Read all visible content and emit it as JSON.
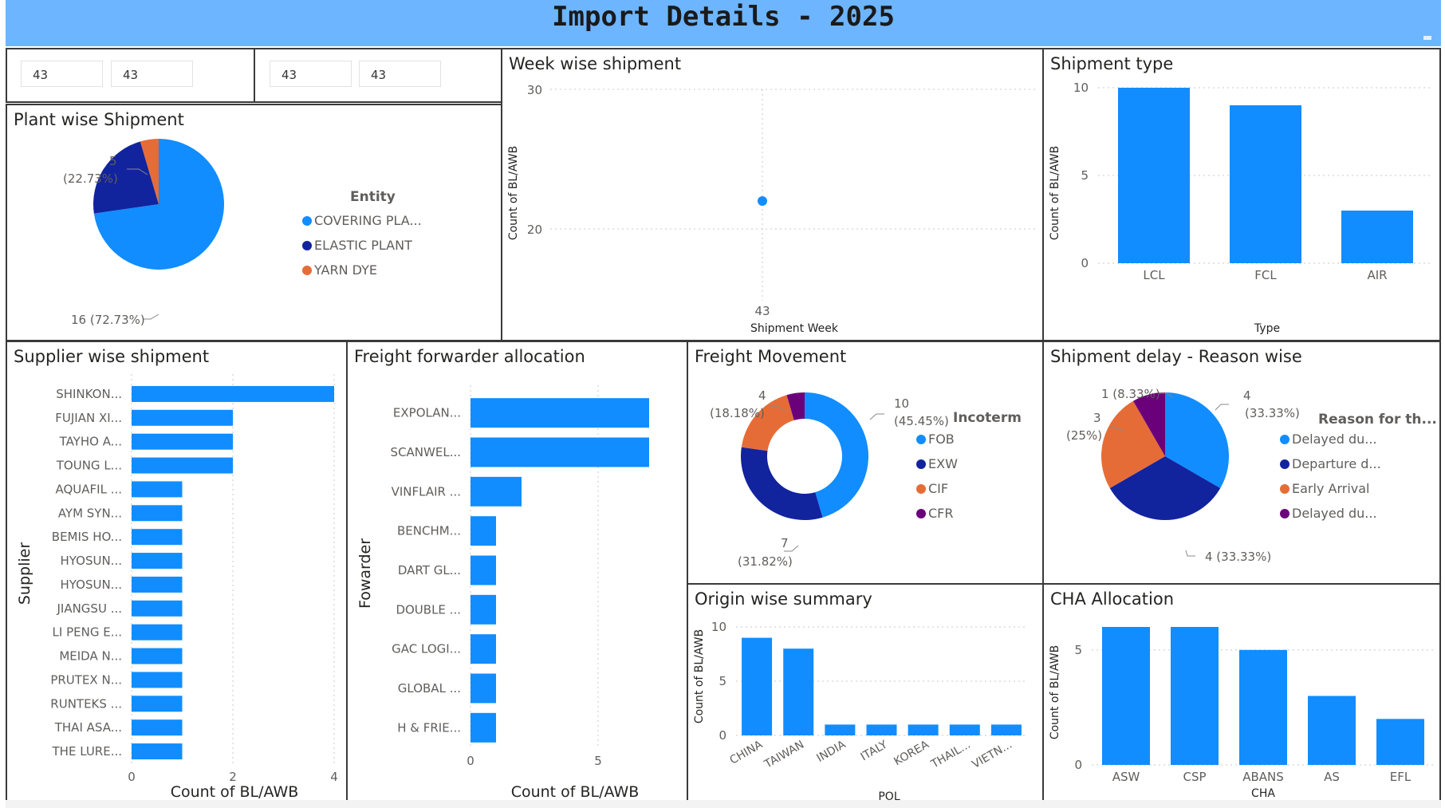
{
  "page": {
    "title": "Import Details - 2025"
  },
  "slicers": [
    "43",
    "43",
    "43",
    "43"
  ],
  "colors": {
    "blue": "#118dff",
    "navy": "#12239e",
    "orange": "#e66c37",
    "purple": "#6b007b",
    "header": "#6db5ff"
  },
  "chart_data": [
    {
      "id": "plant",
      "title": "Plant wise Shipment",
      "type": "pie",
      "legend_title": "Entity",
      "legend_position": "right",
      "categories": [
        "COVERING PLA...",
        "ELASTIC PLANT",
        "YARN DYE"
      ],
      "values": [
        16,
        5,
        1
      ],
      "labels": [
        "16 (72.73%)",
        "5 (22.73%)"
      ]
    },
    {
      "id": "week",
      "title": "Week wise shipment",
      "type": "scatter",
      "xlabel": "Shipment Week",
      "ylabel": "Count of BL/AWB",
      "x": [
        "43"
      ],
      "y": [
        22
      ],
      "yticks": [
        "20",
        "30"
      ],
      "ylim": [
        16,
        30
      ],
      "grid": true
    },
    {
      "id": "shiptype",
      "title": "Shipment type",
      "type": "bar",
      "xlabel": "Type",
      "ylabel": "Count of BL/AWB",
      "categories": [
        "LCL",
        "FCL",
        "AIR"
      ],
      "values": [
        10,
        9,
        3
      ],
      "yticks": [
        "0",
        "5",
        "10"
      ],
      "ylim": [
        0,
        10
      ],
      "grid": true
    },
    {
      "id": "supplier",
      "title": "Supplier wise shipment",
      "type": "bar",
      "orientation": "horizontal",
      "xlabel": "Count of BL/AWB",
      "ylabel": "Supplier",
      "categories": [
        "SHINKON...",
        "FUJIAN XI...",
        "TAYHO A...",
        "TOUNG L...",
        "AQUAFIL ...",
        "AYM SYN...",
        "BEMIS HO...",
        "HYOSUN...",
        "HYOSUN...",
        "JIANGSU ...",
        "LI PENG E...",
        "MEIDA N...",
        "PRUTEX N...",
        "RUNTEKS ...",
        "THAI ASA...",
        "THE LURE..."
      ],
      "values": [
        4,
        2,
        2,
        2,
        1,
        1,
        1,
        1,
        1,
        1,
        1,
        1,
        1,
        1,
        1,
        1
      ],
      "xticks": [
        "0",
        "2",
        "4"
      ],
      "xlim": [
        0,
        4
      ],
      "grid": true
    },
    {
      "id": "forwarder",
      "title": "Freight forwarder allocation",
      "type": "bar",
      "orientation": "horizontal",
      "xlabel": "Count of BL/AWB",
      "ylabel": "Fowarder",
      "categories": [
        "EXPOLAN...",
        "SCANWEL...",
        "VINFLAIR ...",
        "BENCHM...",
        "DART GL...",
        "DOUBLE ...",
        "GAC LOGI...",
        "GLOBAL ...",
        "H & FRIE..."
      ],
      "values": [
        7,
        7,
        2,
        1,
        1,
        1,
        1,
        1,
        1
      ],
      "xticks": [
        "0",
        "5"
      ],
      "xlim": [
        0,
        7
      ],
      "grid": true
    },
    {
      "id": "freight",
      "title": "Freight Movement",
      "type": "pie",
      "donut": true,
      "legend_title": "Incoterm",
      "legend_position": "right",
      "categories": [
        "FOB",
        "EXW",
        "CIF",
        "CFR"
      ],
      "values": [
        10,
        7,
        4,
        1
      ],
      "labels": [
        "10 (45.45%)",
        "7 (31.82%)",
        "4 (18.18%)"
      ]
    },
    {
      "id": "delay",
      "title": "Shipment delay - Reason wise",
      "type": "pie",
      "legend_title": "Reason for th...",
      "legend_position": "right",
      "categories": [
        "Delayed du...",
        "Departure d...",
        "Early Arrival",
        "Delayed du..."
      ],
      "values": [
        4,
        4,
        3,
        1
      ],
      "labels": [
        "4 (33.33%)",
        "4 (33.33%)",
        "3 (25%)",
        "1 (8.33%)"
      ]
    },
    {
      "id": "origin",
      "title": "Origin wise summary",
      "type": "bar",
      "xlabel": "POL",
      "ylabel": "Count of BL/AWB",
      "categories": [
        "CHINA",
        "TAIWAN",
        "INDIA",
        "ITALY",
        "KOREA",
        "THAIL...",
        "VIETN..."
      ],
      "values": [
        9,
        8,
        1,
        1,
        1,
        1,
        1
      ],
      "yticks": [
        "0",
        "5",
        "10"
      ],
      "ylim": [
        0,
        10
      ],
      "grid": true
    },
    {
      "id": "cha",
      "title": "CHA Allocation",
      "type": "bar",
      "xlabel": "CHA",
      "ylabel": "Count of BL/AWB",
      "categories": [
        "ASW",
        "CSP",
        "ABANS",
        "AS",
        "EFL"
      ],
      "values": [
        6,
        6,
        5,
        3,
        2
      ],
      "yticks": [
        "0",
        "5"
      ],
      "ylim": [
        0,
        6
      ],
      "grid": true
    }
  ]
}
